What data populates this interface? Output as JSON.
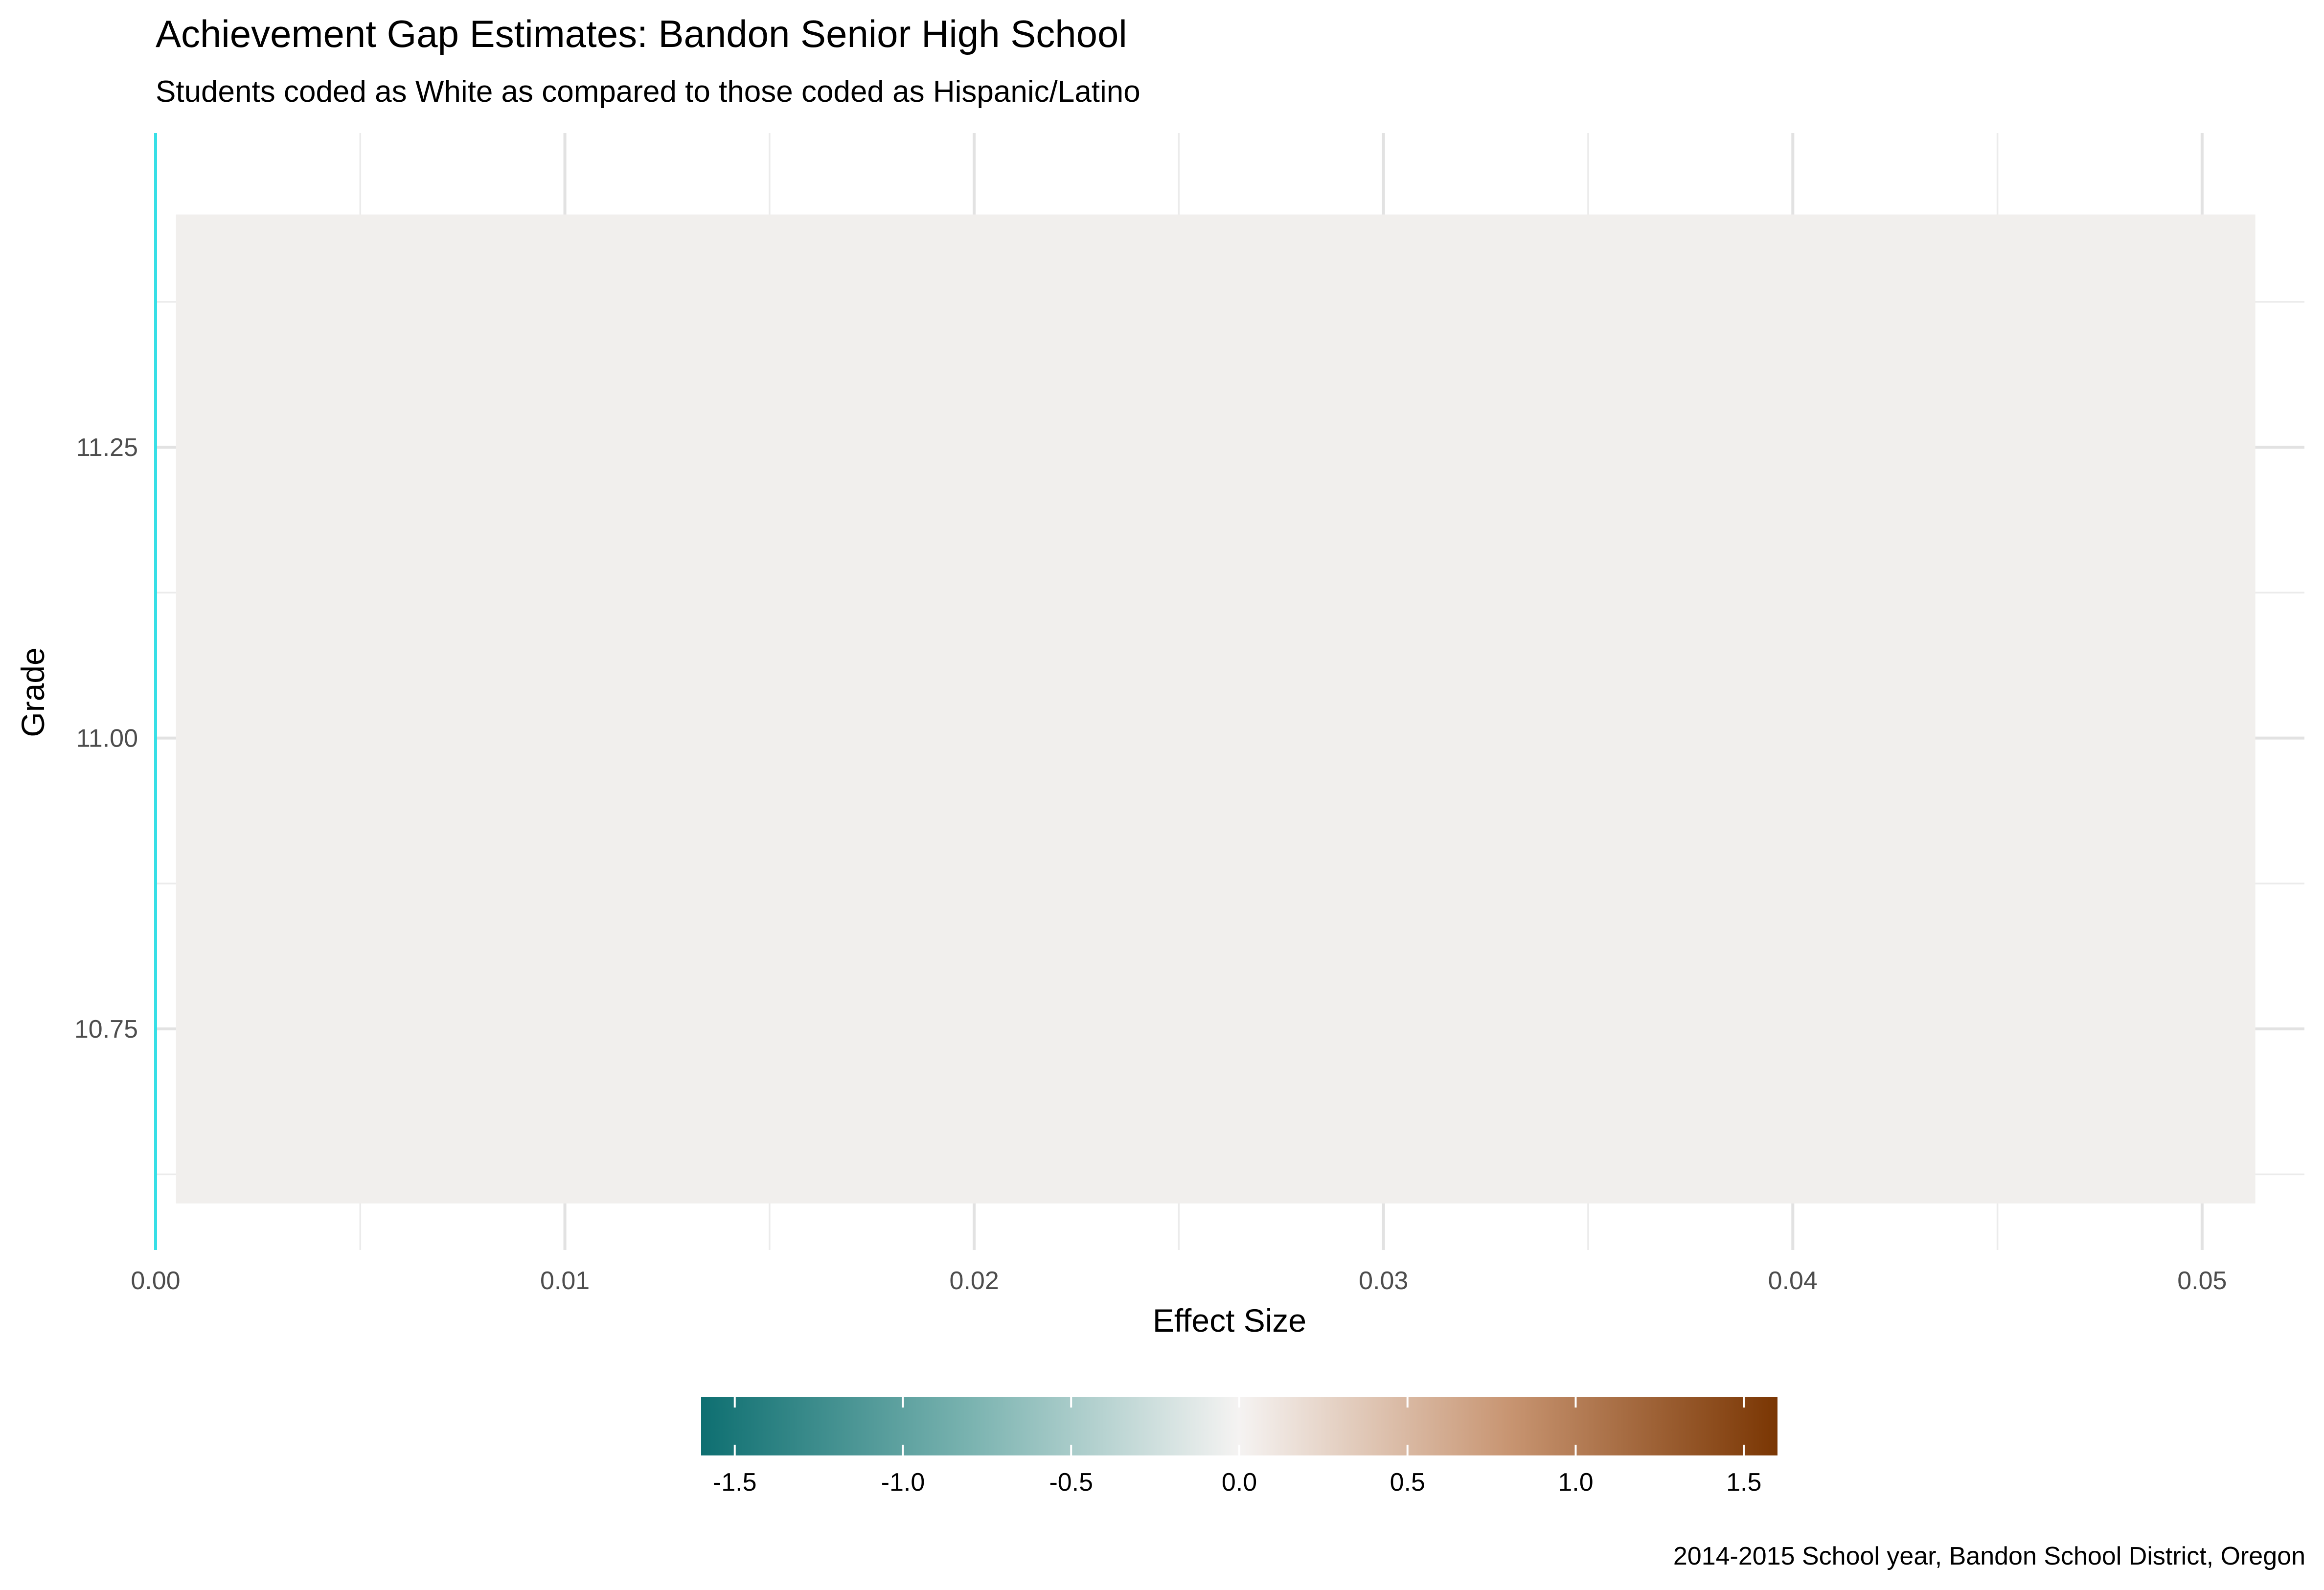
{
  "chart_data": {
    "type": "heatmap",
    "title": "Achievement Gap Estimates: Bandon Senior High School",
    "subtitle": "Students coded as White as compared to those coded as Hispanic/Latino",
    "xlabel": "Effect Size",
    "ylabel": "Grade",
    "caption": "2014-2015 School year, Bandon School District, Oregon",
    "xlim": [
      0,
      0.0525
    ],
    "ylim": [
      10.56,
      11.52
    ],
    "x_ticks": [
      {
        "value": 0.0,
        "label": "0.00"
      },
      {
        "value": 0.01,
        "label": "0.01"
      },
      {
        "value": 0.02,
        "label": "0.02"
      },
      {
        "value": 0.03,
        "label": "0.03"
      },
      {
        "value": 0.04,
        "label": "0.04"
      },
      {
        "value": 0.05,
        "label": "0.05"
      }
    ],
    "y_ticks": [
      {
        "value": 10.75,
        "label": "10.75"
      },
      {
        "value": 11.0,
        "label": "11.00"
      },
      {
        "value": 11.25,
        "label": "11.25"
      }
    ],
    "grid": true,
    "reference_line": {
      "x": 0,
      "color": "#37dfe6"
    },
    "tiles": [
      {
        "grade": 11,
        "x_start": 0.0005,
        "x_end": 0.0513,
        "y_start": 10.6,
        "y_end": 11.45,
        "fill_value": 0.05
      }
    ],
    "legend": {
      "placement": "bottom",
      "range": [
        -1.6,
        1.6
      ],
      "ticks": [
        {
          "value": -1.5,
          "label": "-1.5"
        },
        {
          "value": -1.0,
          "label": "-1.0"
        },
        {
          "value": -0.5,
          "label": "-0.5"
        },
        {
          "value": 0.0,
          "label": "0.0"
        },
        {
          "value": 0.5,
          "label": "0.5"
        },
        {
          "value": 1.0,
          "label": "1.0"
        },
        {
          "value": 1.5,
          "label": "1.5"
        }
      ],
      "colors": {
        "low": "#01665e",
        "mid": "#f5f5f5",
        "high": "#7a3603"
      }
    }
  }
}
